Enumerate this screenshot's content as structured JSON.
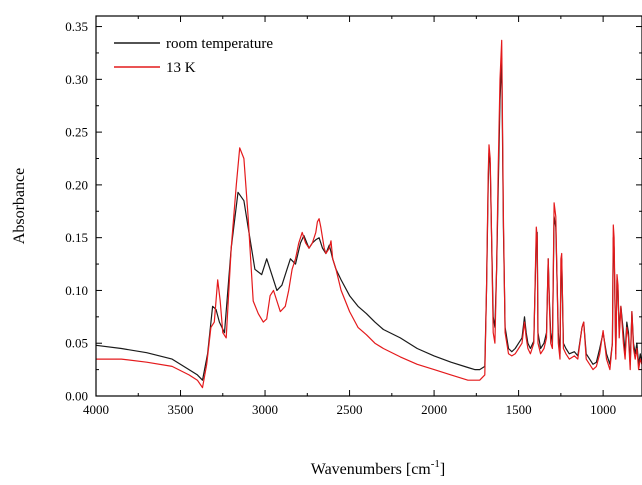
{
  "chart_data": {
    "type": "line",
    "xlabel_main": "Wavenumbers [cm",
    "xlabel_sup": "-1",
    "xlabel_close": "]",
    "ylabel": "Absorbance",
    "xlim": [
      4000,
      770
    ],
    "ylim": [
      0,
      0.36
    ],
    "x_reversed": true,
    "x_ticks": [
      4000,
      3500,
      3000,
      2500,
      2000,
      1500,
      1000
    ],
    "x_tick_labels": [
      "4000",
      "3500",
      "3000",
      "2500",
      "2000",
      "1500",
      "1000"
    ],
    "y_ticks": [
      0,
      0.05,
      0.1,
      0.15,
      0.2,
      0.25,
      0.3,
      0.35
    ],
    "y_tick_labels": [
      "0.00",
      "0.05",
      "0.10",
      "0.15",
      "0.20",
      "0.25",
      "0.30",
      "0.35"
    ],
    "grid": false,
    "legend_position": "top-left",
    "series": [
      {
        "name": "room temperature",
        "color": "#1a1a1a",
        "x": [
          4000,
          3850,
          3700,
          3550,
          3450,
          3400,
          3370,
          3340,
          3310,
          3290,
          3270,
          3240,
          3200,
          3160,
          3125,
          3100,
          3060,
          3020,
          2990,
          2960,
          2930,
          2900,
          2870,
          2850,
          2820,
          2790,
          2770,
          2740,
          2720,
          2700,
          2680,
          2660,
          2640,
          2620,
          2600,
          2580,
          2550,
          2500,
          2450,
          2400,
          2350,
          2300,
          2200,
          2100,
          2000,
          1900,
          1800,
          1760,
          1730,
          1700,
          1690,
          1680,
          1675,
          1668,
          1660,
          1650,
          1640,
          1630,
          1620,
          1610,
          1600,
          1590,
          1580,
          1560,
          1540,
          1520,
          1500,
          1480,
          1465,
          1455,
          1445,
          1430,
          1410,
          1395,
          1390,
          1385,
          1370,
          1350,
          1335,
          1325,
          1318,
          1310,
          1300,
          1290,
          1280,
          1265,
          1255,
          1250,
          1245,
          1235,
          1220,
          1200,
          1170,
          1150,
          1125,
          1115,
          1100,
          1080,
          1060,
          1040,
          1020,
          1000,
          980,
          960,
          945,
          940,
          935,
          925,
          918,
          912,
          905,
          895,
          880,
          870,
          860,
          850,
          840,
          830,
          820,
          810,
          800,
          790,
          780,
          770
        ],
        "y": [
          0.048,
          0.045,
          0.041,
          0.035,
          0.025,
          0.02,
          0.015,
          0.04,
          0.085,
          0.082,
          0.07,
          0.06,
          0.14,
          0.193,
          0.185,
          0.16,
          0.12,
          0.115,
          0.13,
          0.115,
          0.1,
          0.105,
          0.12,
          0.13,
          0.125,
          0.145,
          0.152,
          0.14,
          0.145,
          0.148,
          0.15,
          0.14,
          0.135,
          0.143,
          0.13,
          0.12,
          0.11,
          0.095,
          0.085,
          0.078,
          0.07,
          0.063,
          0.055,
          0.045,
          0.038,
          0.032,
          0.027,
          0.025,
          0.025,
          0.028,
          0.1,
          0.2,
          0.23,
          0.22,
          0.15,
          0.075,
          0.065,
          0.12,
          0.2,
          0.28,
          0.32,
          0.16,
          0.065,
          0.045,
          0.042,
          0.045,
          0.05,
          0.055,
          0.075,
          0.06,
          0.05,
          0.045,
          0.052,
          0.15,
          0.155,
          0.06,
          0.045,
          0.05,
          0.06,
          0.13,
          0.09,
          0.06,
          0.05,
          0.17,
          0.16,
          0.06,
          0.04,
          0.11,
          0.13,
          0.05,
          0.045,
          0.04,
          0.042,
          0.038,
          0.065,
          0.07,
          0.04,
          0.035,
          0.03,
          0.032,
          0.045,
          0.06,
          0.04,
          0.03,
          0.05,
          0.15,
          0.14,
          0.04,
          0.11,
          0.1,
          0.06,
          0.085,
          0.06,
          0.04,
          0.07,
          0.06,
          0.03,
          0.08,
          0.05,
          0.04,
          0.05,
          0.03,
          0.04,
          0.03
        ]
      },
      {
        "name": "13 K",
        "color": "#e41a1c",
        "x": [
          4000,
          3850,
          3700,
          3550,
          3450,
          3400,
          3370,
          3345,
          3320,
          3300,
          3280,
          3265,
          3250,
          3230,
          3200,
          3170,
          3150,
          3125,
          3100,
          3070,
          3040,
          3010,
          2990,
          2970,
          2950,
          2930,
          2910,
          2880,
          2860,
          2840,
          2820,
          2800,
          2780,
          2760,
          2740,
          2720,
          2700,
          2690,
          2680,
          2670,
          2650,
          2640,
          2620,
          2610,
          2600,
          2580,
          2550,
          2500,
          2450,
          2400,
          2350,
          2300,
          2200,
          2100,
          2000,
          1900,
          1800,
          1760,
          1730,
          1700,
          1690,
          1680,
          1675,
          1668,
          1660,
          1650,
          1640,
          1630,
          1620,
          1610,
          1600,
          1590,
          1580,
          1560,
          1540,
          1520,
          1500,
          1480,
          1465,
          1455,
          1445,
          1430,
          1410,
          1395,
          1390,
          1385,
          1370,
          1350,
          1335,
          1325,
          1318,
          1310,
          1300,
          1290,
          1280,
          1265,
          1255,
          1250,
          1245,
          1235,
          1220,
          1200,
          1170,
          1150,
          1125,
          1115,
          1100,
          1080,
          1060,
          1040,
          1020,
          1000,
          980,
          960,
          945,
          940,
          935,
          925,
          918,
          912,
          905,
          895,
          880,
          870,
          860,
          850,
          840,
          830,
          820,
          810,
          800,
          790,
          780,
          770
        ],
        "y": [
          0.035,
          0.035,
          0.032,
          0.028,
          0.02,
          0.015,
          0.008,
          0.03,
          0.065,
          0.07,
          0.11,
          0.09,
          0.06,
          0.055,
          0.14,
          0.2,
          0.235,
          0.225,
          0.17,
          0.09,
          0.078,
          0.07,
          0.073,
          0.095,
          0.1,
          0.09,
          0.08,
          0.085,
          0.1,
          0.12,
          0.13,
          0.145,
          0.155,
          0.145,
          0.14,
          0.145,
          0.155,
          0.165,
          0.168,
          0.16,
          0.14,
          0.135,
          0.14,
          0.147,
          0.13,
          0.12,
          0.1,
          0.08,
          0.065,
          0.058,
          0.05,
          0.045,
          0.037,
          0.03,
          0.025,
          0.02,
          0.015,
          0.015,
          0.015,
          0.02,
          0.1,
          0.21,
          0.238,
          0.225,
          0.15,
          0.06,
          0.05,
          0.12,
          0.22,
          0.3,
          0.337,
          0.17,
          0.06,
          0.04,
          0.038,
          0.04,
          0.045,
          0.05,
          0.07,
          0.055,
          0.045,
          0.04,
          0.05,
          0.16,
          0.15,
          0.05,
          0.04,
          0.045,
          0.055,
          0.13,
          0.085,
          0.05,
          0.045,
          0.183,
          0.17,
          0.05,
          0.035,
          0.13,
          0.135,
          0.045,
          0.04,
          0.035,
          0.038,
          0.035,
          0.065,
          0.07,
          0.035,
          0.03,
          0.025,
          0.028,
          0.04,
          0.062,
          0.035,
          0.025,
          0.05,
          0.162,
          0.15,
          0.035,
          0.115,
          0.105,
          0.055,
          0.085,
          0.05,
          0.035,
          0.065,
          0.055,
          0.025,
          0.08,
          0.045,
          0.035,
          0.045,
          0.025,
          0.035,
          0.03
        ]
      }
    ]
  }
}
